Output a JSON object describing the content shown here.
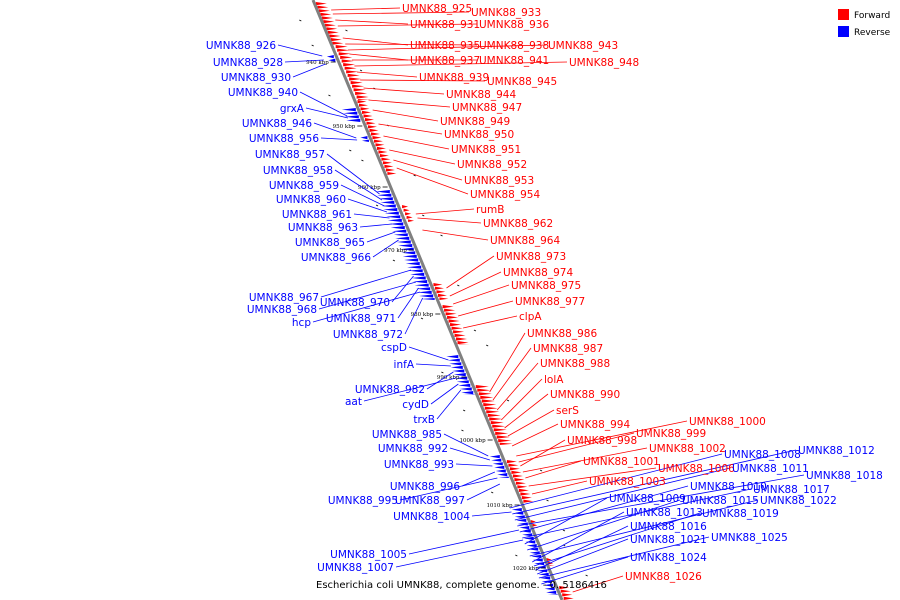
{
  "caption": "Escherichia coli UMNK88, complete genome. - 0..5186416",
  "colors": {
    "forward": "#ff0000",
    "reverse": "#0000ff",
    "backbone": "#808080"
  },
  "legend": [
    {
      "label": "Forward",
      "color": "#ff0000"
    },
    {
      "label": "Reverse",
      "color": "#0000ff"
    }
  ],
  "ticks": [
    "940 kbp",
    "950 kbp",
    "960 kbp",
    "970 kbp",
    "980 kbp",
    "990 kbp",
    "1000 kbp",
    "1010 kbp",
    "1020 kbp"
  ],
  "forward_labels": [
    "UMNK88_925",
    "UMNK88_933",
    "UMNK88_931",
    "UMNK88_936",
    "UMNK88_935",
    "UMNK88_938",
    "UMNK88_943",
    "UMNK88_937",
    "UMNK88_941",
    "UMNK88_948",
    "UMNK88_939",
    "UMNK88_945",
    "UMNK88_944",
    "UMNK88_947",
    "UMNK88_949",
    "UMNK88_950",
    "UMNK88_951",
    "UMNK88_952",
    "UMNK88_953",
    "UMNK88_954",
    "rumB",
    "UMNK88_962",
    "UMNK88_964",
    "UMNK88_973",
    "UMNK88_974",
    "UMNK88_975",
    "UMNK88_977",
    "clpA",
    "UMNK88_986",
    "UMNK88_987",
    "UMNK88_988",
    "lolA",
    "UMNK88_990",
    "serS",
    "UMNK88_994",
    "UMNK88_1000",
    "UMNK88_999",
    "UMNK88_998",
    "UMNK88_1002",
    "UMNK88_1001",
    "UMNK88_1006",
    "UMNK88_1003",
    "UMNK88_1026"
  ],
  "reverse_labels": [
    "UMNK88_926",
    "UMNK88_928",
    "UMNK88_930",
    "UMNK88_940",
    "grxA",
    "UMNK88_946",
    "UMNK88_956",
    "UMNK88_957",
    "UMNK88_958",
    "UMNK88_959",
    "UMNK88_960",
    "UMNK88_961",
    "UMNK88_963",
    "UMNK88_965",
    "UMNK88_966",
    "UMNK88_967",
    "UMNK88_970",
    "UMNK88_968",
    "UMNK88_971",
    "hcp",
    "UMNK88_972",
    "cspD",
    "infA",
    "UMNK88_982",
    "aat",
    "cydD",
    "trxB",
    "UMNK88_985",
    "UMNK88_992",
    "UMNK88_993",
    "UMNK88_996",
    "UMNK88_995",
    "UMNK88_997",
    "UMNK88_1004",
    "UMNK88_1005",
    "UMNK88_1007",
    "UMNK88_1008",
    "UMNK88_1012",
    "UMNK88_1011",
    "UMNK88_1018",
    "UMNK88_1010",
    "UMNK88_1017",
    "UMNK88_1009",
    "UMNK88_1015",
    "UMNK88_1022",
    "UMNK88_1013",
    "UMNK88_1019",
    "UMNK88_1016",
    "UMNK88_1021",
    "UMNK88_1025",
    "UMNK88_1024"
  ]
}
